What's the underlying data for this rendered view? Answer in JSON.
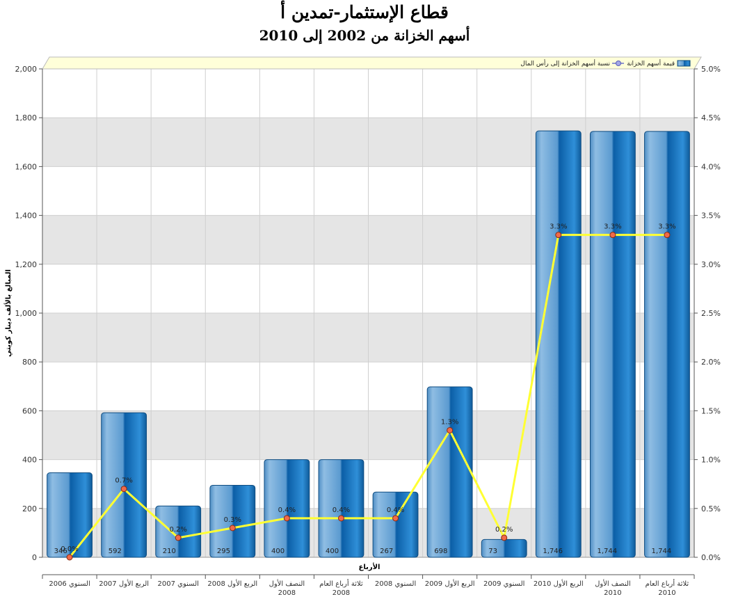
{
  "chart_data": {
    "type": "bar",
    "title": "قطاع الإستثمار-تمدين أ",
    "subtitle": "أسهم الخزانة من 2002 إلى 2010",
    "xlabel": "الأرباع",
    "ylabel": "المبالغ بالألف دينار كويتي",
    "ylim": [
      0,
      2000
    ],
    "yticks": [
      "0",
      "200",
      "400",
      "600",
      "800",
      "1,000",
      "1,200",
      "1,400",
      "1,600",
      "1,800",
      "2,000"
    ],
    "y2lim": [
      0,
      5
    ],
    "y2ticks": [
      "0.0%",
      "0.5%",
      "1.0%",
      "1.5%",
      "2.0%",
      "2.5%",
      "3.0%",
      "3.5%",
      "4.0%",
      "4.5%",
      "5.0%"
    ],
    "categories": [
      [
        "السنوي 2006"
      ],
      [
        "الربع الأول 2007"
      ],
      [
        "السنوي 2007"
      ],
      [
        "الربع الأول 2008"
      ],
      [
        "النصف الأول",
        "2008"
      ],
      [
        "ثلاثة أرباع العام",
        "2008"
      ],
      [
        "السنوي 2008"
      ],
      [
        "الربع الأول 2009"
      ],
      [
        "السنوي 2009"
      ],
      [
        "الربع الأول 2010"
      ],
      [
        "النصف الأول",
        "2010"
      ],
      [
        "ثلاثة أرباع العام",
        "2010"
      ]
    ],
    "series": [
      {
        "name": "قيمة أسهم الخزانة",
        "type": "bar",
        "axis": "left",
        "values": [
          346,
          592,
          210,
          295,
          400,
          400,
          267,
          698,
          73,
          1746,
          1744,
          1744
        ],
        "labels": [
          "346",
          "592",
          "210",
          "295",
          "400",
          "400",
          "267",
          "698",
          "73",
          "1,746",
          "1,744",
          "1,744"
        ]
      },
      {
        "name": "نسبة أسهم الخزانة إلى رأس المال",
        "type": "line",
        "axis": "right",
        "values": [
          0.0,
          0.7,
          0.2,
          0.3,
          0.4,
          0.4,
          0.4,
          1.3,
          0.2,
          3.3,
          3.3,
          3.3
        ],
        "labels": [
          "0.0%",
          "0.7%",
          "0.2%",
          "0.3%",
          "0.4%",
          "0.4%",
          "0.4%",
          "1.3%",
          "0.2%",
          "3.3%",
          "3.3%",
          "3.3%"
        ]
      }
    ],
    "grid": true,
    "legend": "top-right",
    "colors": {
      "bar_light": "#a9cbe6",
      "bar_mid": "#5b9bd1",
      "bar_dark": "#0a5a9c",
      "bar_edge": "#0f4c80",
      "line": "#ffff33",
      "marker": "#f06a4a",
      "band": "#e5e5e5",
      "legend_bg": "#ffffd9"
    }
  }
}
